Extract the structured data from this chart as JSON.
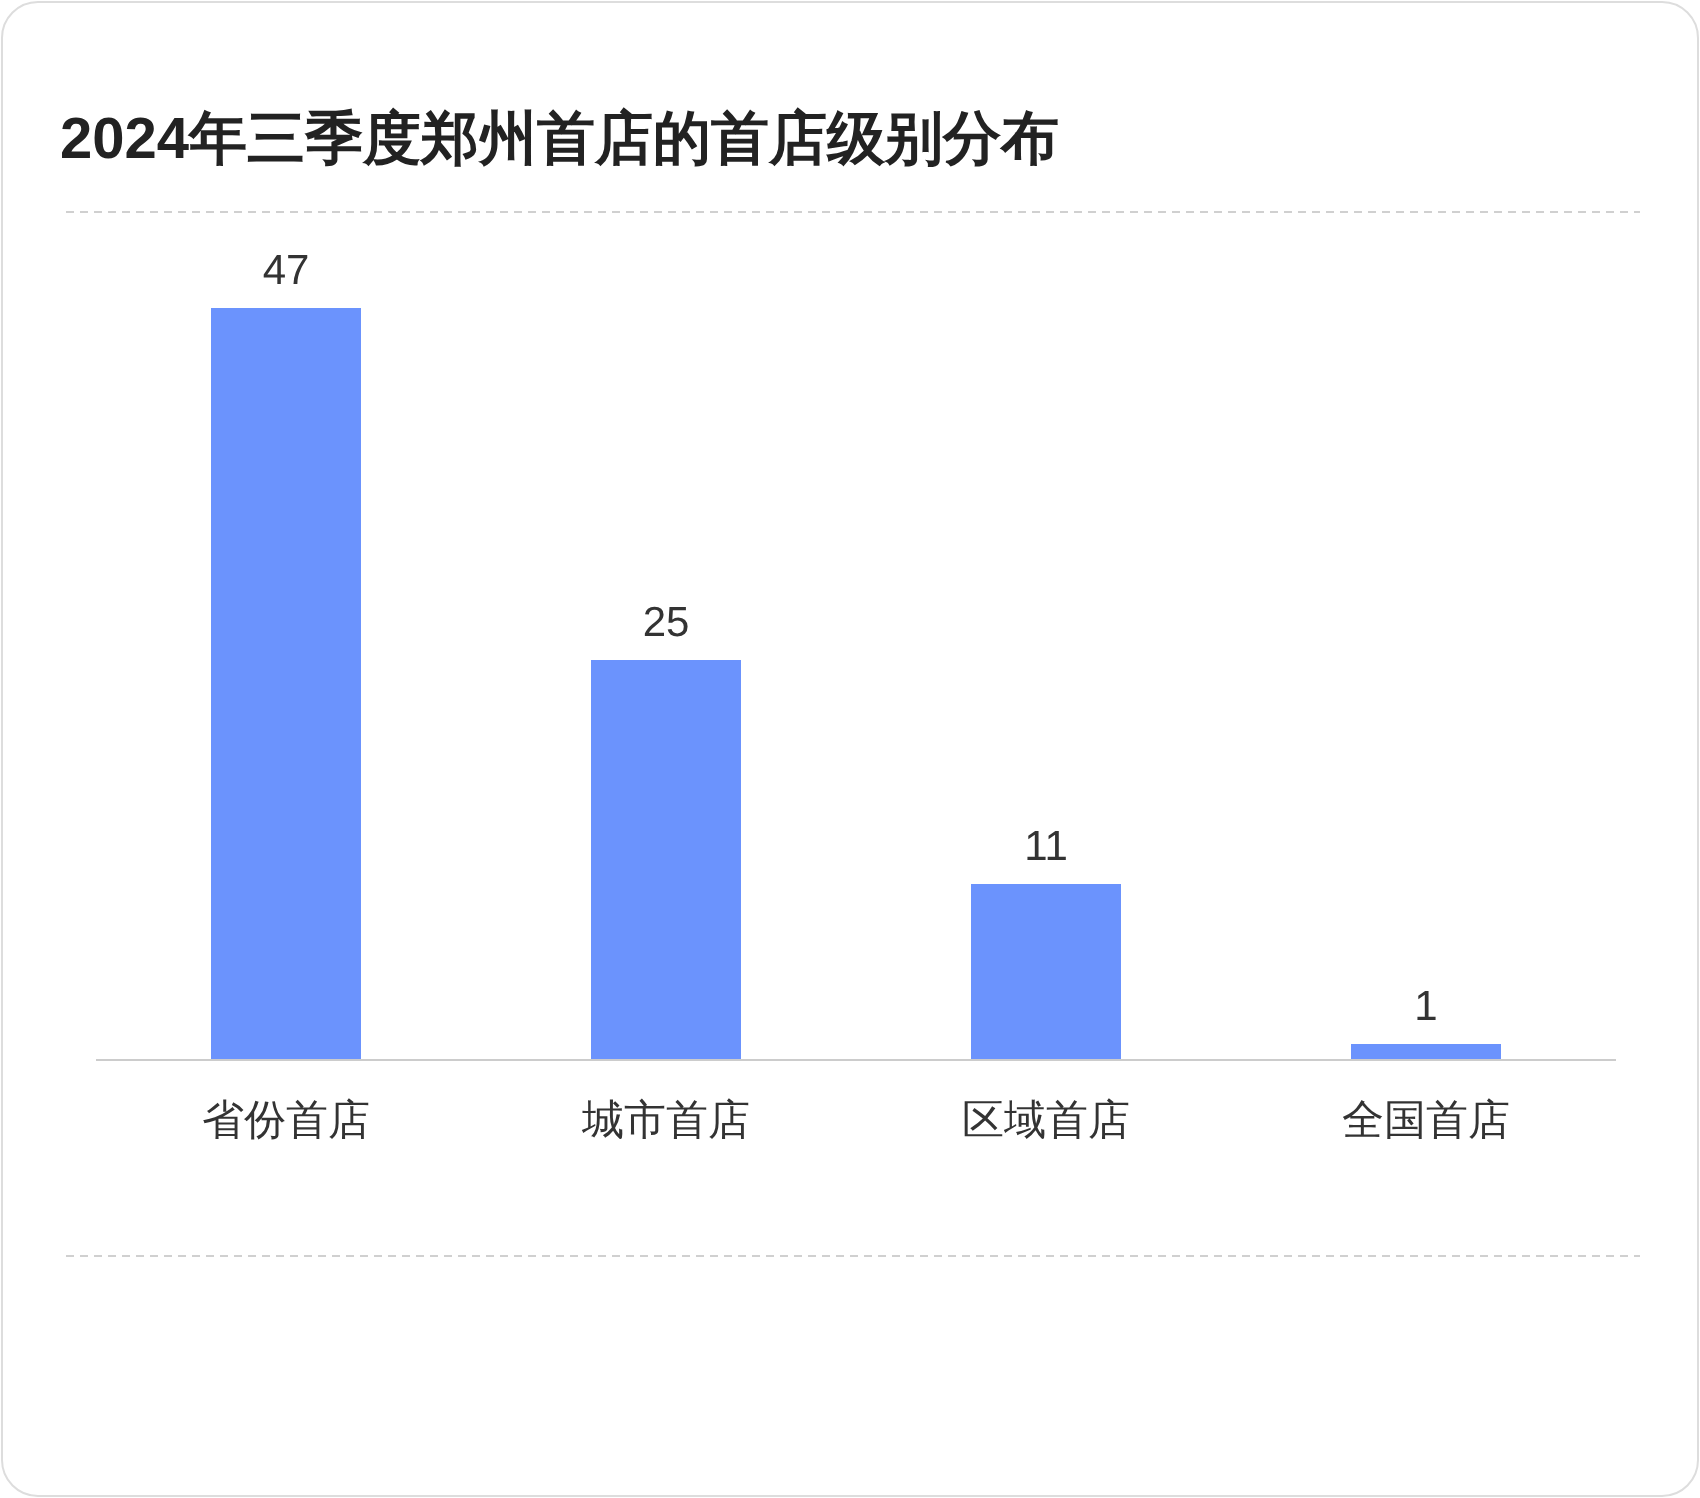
{
  "chart_data": {
    "type": "bar",
    "title": "2024年三季度郑州首店的首店级别分布",
    "categories": [
      "省份首店",
      "城市首店",
      "区域首店",
      "全国首店"
    ],
    "values": [
      47,
      25,
      11,
      1
    ],
    "color": "#6b93fd",
    "data_labels": true
  }
}
